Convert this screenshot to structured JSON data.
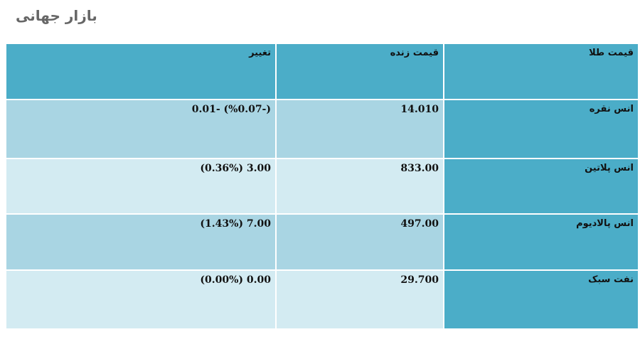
{
  "page": {
    "title": "بازار جهانی"
  },
  "table": {
    "headers": {
      "change": "تغییر",
      "live_price": "قیمت زنده",
      "gold_price": "قیمت طلا"
    },
    "rows": [
      {
        "name": "انس نقره",
        "price": "14.010",
        "change": "0.01- (%0.07-)"
      },
      {
        "name": "انس پلاتین",
        "price": "833.00",
        "change": "(0.36%) 3.00"
      },
      {
        "name": "انس پالادیوم",
        "price": "497.00",
        "change": "(1.43%) 7.00"
      },
      {
        "name": "نفت سبک",
        "price": "29.700",
        "change": "(0.00%) 0.00"
      }
    ]
  },
  "colors": {
    "header_bg": "#4badc8",
    "row_dark": "#a9d5e3",
    "row_light": "#d3ebf2",
    "title_text": "#666666"
  }
}
